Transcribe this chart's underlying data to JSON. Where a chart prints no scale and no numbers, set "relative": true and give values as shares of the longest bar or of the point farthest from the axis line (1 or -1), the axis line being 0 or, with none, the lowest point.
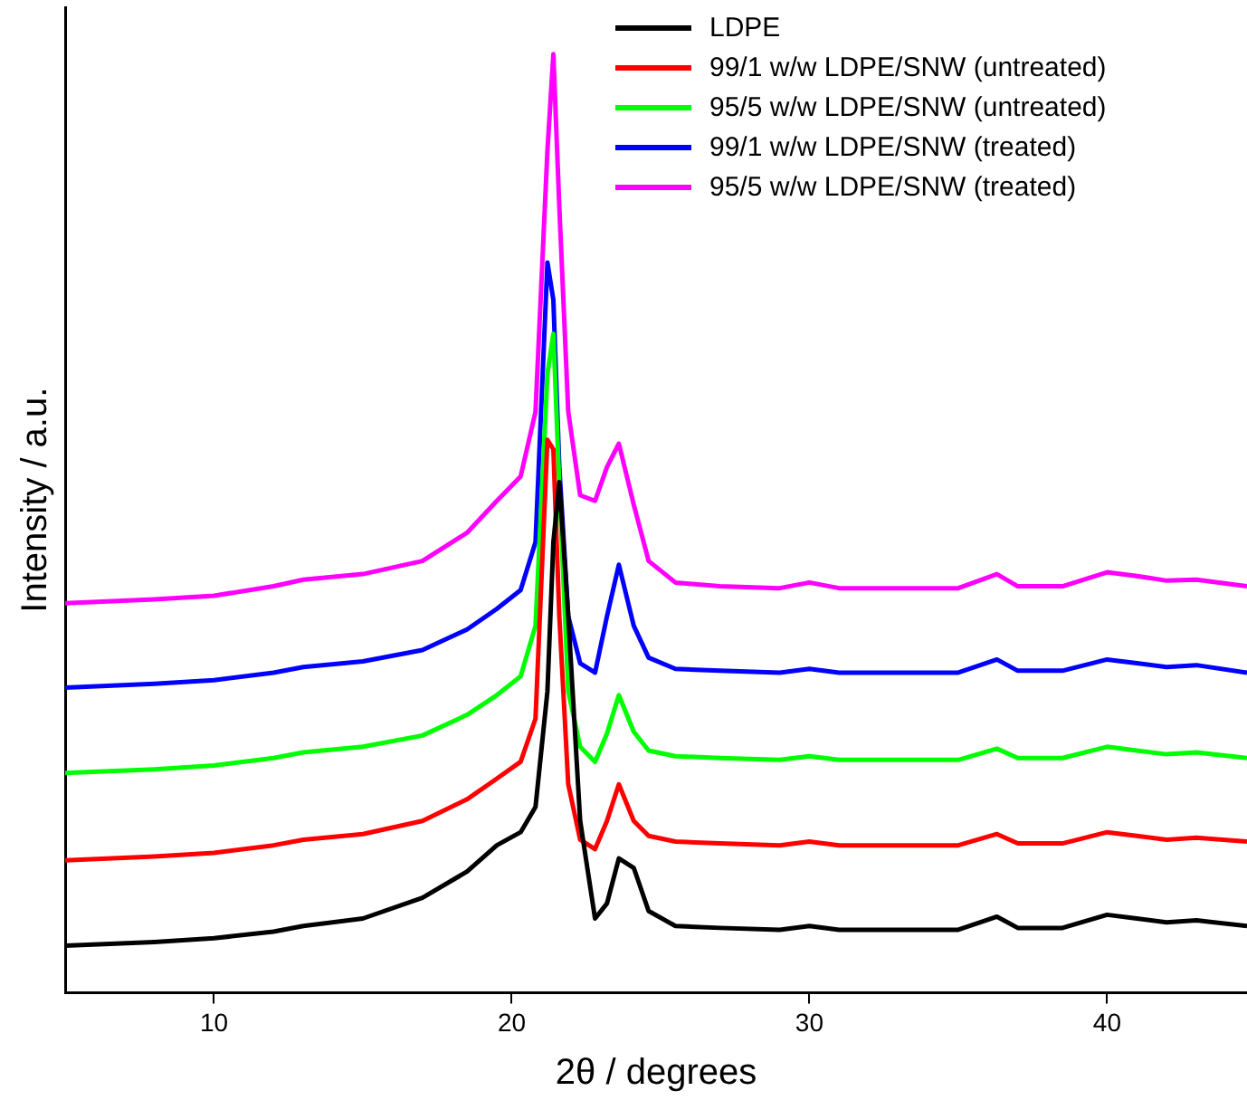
{
  "chart_data": {
    "type": "line",
    "relative": true,
    "xlabel": "2θ / degrees",
    "ylabel": "Intensity / a.u.",
    "xlim": [
      5,
      44.7
    ],
    "xticks": [
      10,
      20,
      30,
      40
    ],
    "grid": false,
    "legend": "top right",
    "marker": "none",
    "line_style": "solid",
    "x": [
      5,
      8,
      10,
      12,
      13,
      15,
      17,
      18.5,
      19.5,
      20.3,
      20.8,
      21.2,
      21.4,
      21.6,
      21.9,
      22.3,
      22.8,
      23.2,
      23.6,
      24.1,
      24.6,
      25.5,
      27,
      29,
      30,
      31,
      33,
      35,
      36.3,
      37,
      38.5,
      40,
      41,
      42,
      43,
      44.7
    ],
    "series": [
      {
        "name": "LDPE",
        "color": "#000000",
        "values": [
          0.05,
          0.054,
          0.058,
          0.065,
          0.071,
          0.079,
          0.101,
          0.129,
          0.157,
          0.171,
          0.198,
          0.321,
          0.48,
          0.544,
          0.401,
          0.183,
          0.079,
          0.095,
          0.143,
          0.133,
          0.087,
          0.071,
          0.069,
          0.067,
          0.071,
          0.067,
          0.067,
          0.067,
          0.081,
          0.069,
          0.069,
          0.083,
          0.079,
          0.075,
          0.077,
          0.071
        ]
      },
      {
        "name": "99/1 w/w LDPE/SNW (untreated)",
        "color": "#ff0000",
        "values": [
          0.141,
          0.145,
          0.149,
          0.157,
          0.163,
          0.169,
          0.183,
          0.206,
          0.228,
          0.246,
          0.292,
          0.589,
          0.579,
          0.401,
          0.222,
          0.163,
          0.153,
          0.183,
          0.222,
          0.183,
          0.167,
          0.161,
          0.159,
          0.157,
          0.161,
          0.157,
          0.157,
          0.157,
          0.169,
          0.159,
          0.159,
          0.171,
          0.167,
          0.163,
          0.165,
          0.161
        ]
      },
      {
        "name": "95/5 w/w LDPE/SNW (untreated)",
        "color": "#00ff00",
        "values": [
          0.234,
          0.238,
          0.242,
          0.25,
          0.256,
          0.262,
          0.274,
          0.296,
          0.317,
          0.337,
          0.391,
          0.659,
          0.702,
          0.54,
          0.321,
          0.262,
          0.246,
          0.276,
          0.317,
          0.278,
          0.258,
          0.252,
          0.25,
          0.248,
          0.252,
          0.248,
          0.248,
          0.248,
          0.26,
          0.25,
          0.25,
          0.262,
          0.258,
          0.254,
          0.256,
          0.25
        ]
      },
      {
        "name": "99/1 w/w LDPE/SNW (treated)",
        "color": "#0000ff",
        "values": [
          0.325,
          0.329,
          0.333,
          0.341,
          0.347,
          0.353,
          0.365,
          0.387,
          0.409,
          0.429,
          0.48,
          0.778,
          0.738,
          0.56,
          0.401,
          0.351,
          0.341,
          0.401,
          0.456,
          0.391,
          0.357,
          0.345,
          0.343,
          0.341,
          0.345,
          0.341,
          0.341,
          0.341,
          0.355,
          0.343,
          0.343,
          0.355,
          0.351,
          0.347,
          0.349,
          0.341
        ]
      },
      {
        "name": "95/5 w/w LDPE/SNW (treated)",
        "color": "#ff00ff",
        "values": [
          0.415,
          0.419,
          0.423,
          0.433,
          0.44,
          0.446,
          0.46,
          0.49,
          0.524,
          0.55,
          0.619,
          0.897,
          1,
          0.837,
          0.619,
          0.53,
          0.524,
          0.56,
          0.585,
          0.52,
          0.46,
          0.437,
          0.433,
          0.431,
          0.437,
          0.431,
          0.431,
          0.431,
          0.446,
          0.433,
          0.433,
          0.448,
          0.444,
          0.439,
          0.44,
          0.433
        ]
      }
    ]
  }
}
